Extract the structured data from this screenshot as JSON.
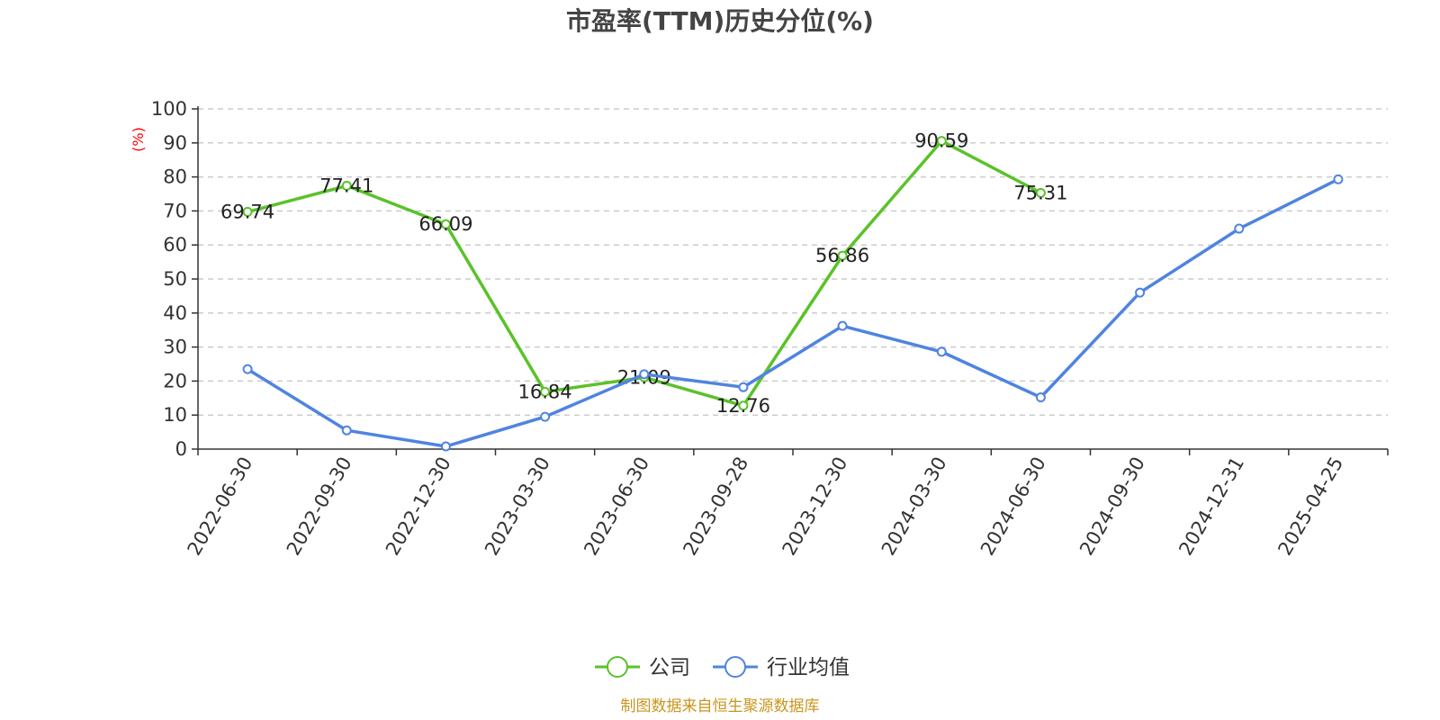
{
  "chart_data": {
    "type": "line",
    "title": "市盈率(TTM)历史分位(%)",
    "ylabel": "(%)",
    "ylim": [
      0,
      100
    ],
    "yticks": [
      0,
      10,
      20,
      30,
      40,
      50,
      60,
      70,
      80,
      90,
      100
    ],
    "categories": [
      "2022-06-30",
      "2022-09-30",
      "2022-12-30",
      "2023-03-30",
      "2023-06-30",
      "2023-09-28",
      "2023-12-30",
      "2024-03-30",
      "2024-06-30",
      "2024-09-30",
      "2024-12-31",
      "2025-04-25"
    ],
    "grid": true,
    "legend_position": "bottom",
    "series": [
      {
        "name": "公司",
        "color": "#5ac229",
        "show_labels": true,
        "values": [
          69.74,
          77.41,
          66.09,
          16.84,
          21.09,
          12.76,
          56.86,
          90.59,
          75.31,
          null,
          null,
          null
        ]
      },
      {
        "name": "行业均值",
        "color": "#4f84e0",
        "show_labels": false,
        "values": [
          23.5,
          5.5,
          0.8,
          9.5,
          22.0,
          18.2,
          36.2,
          28.6,
          15.2,
          46.0,
          64.8,
          79.3
        ]
      }
    ]
  },
  "source": "制图数据来自恒生聚源数据库",
  "source_color": "#c8961e",
  "ylabel_color": "#ff0000"
}
